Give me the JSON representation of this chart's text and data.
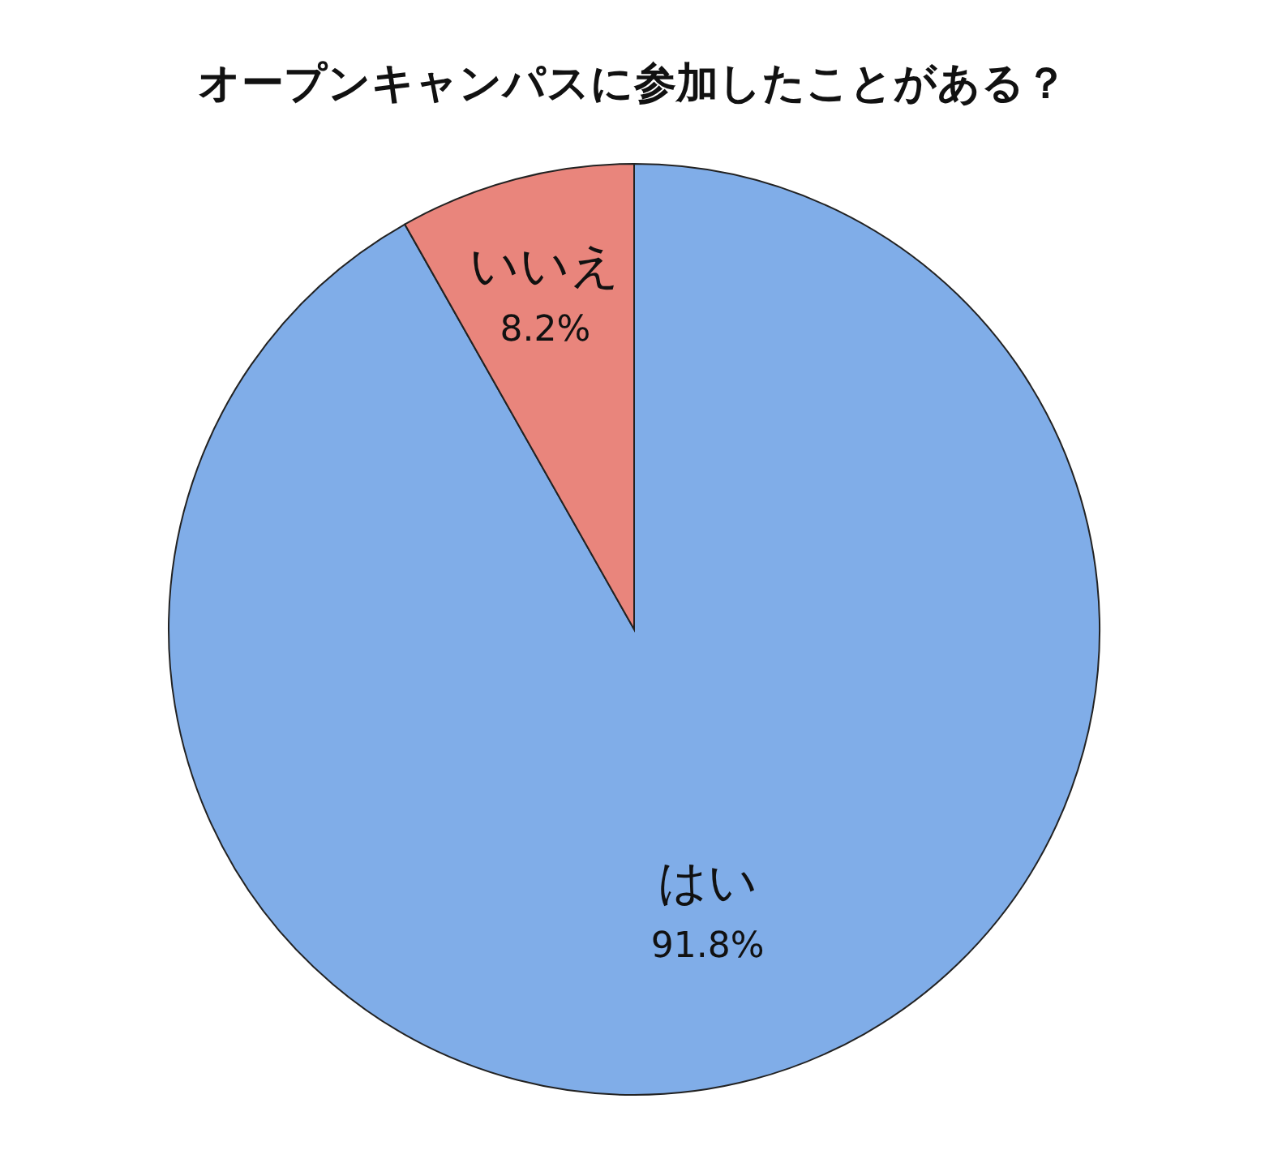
{
  "chart_data": {
    "type": "pie",
    "title": "オープンキャンパスに参加したことがある？",
    "categories": [
      "はい",
      "いいえ"
    ],
    "values": [
      91.8,
      8.2
    ],
    "colors": [
      "#80ade8",
      "#e9857c"
    ],
    "value_labels": [
      "91.8%",
      "8.2%"
    ]
  }
}
